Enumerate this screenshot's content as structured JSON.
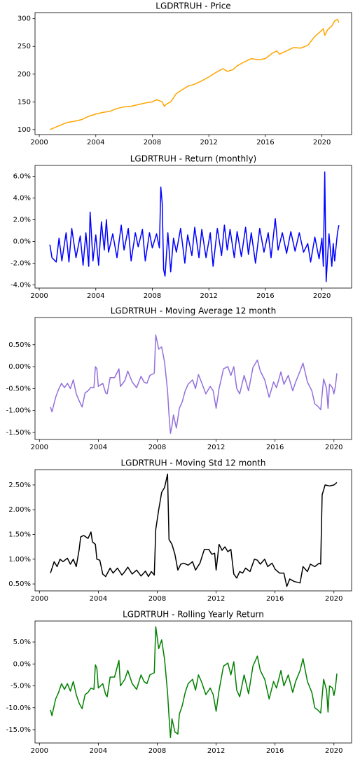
{
  "chart_data": [
    {
      "type": "line",
      "title": "LGDRTRUH - Price",
      "color": "#ffa500",
      "x": [
        2000.75,
        2001.5,
        2002,
        2002.5,
        2003,
        2003.5,
        2004,
        2004.5,
        2005,
        2005.5,
        2006,
        2006.5,
        2007,
        2007.5,
        2008,
        2008.3,
        2008.7,
        2008.85,
        2009,
        2009.3,
        2009.7,
        2010,
        2010.5,
        2011,
        2011.5,
        2012,
        2012.5,
        2013,
        2013.3,
        2013.7,
        2014,
        2014.5,
        2015,
        2015.5,
        2016,
        2016.5,
        2016.8,
        2017,
        2017.5,
        2018,
        2018.5,
        2019,
        2019.5,
        2019.9,
        2020.1,
        2020.2,
        2020.4,
        2020.7,
        2020.9,
        2021.1,
        2021.2
      ],
      "values": [
        100,
        108,
        113,
        115,
        118,
        124,
        128,
        131,
        133,
        138,
        141,
        142,
        145,
        148,
        150,
        154,
        150,
        142,
        146,
        150,
        165,
        170,
        178,
        182,
        188,
        195,
        203,
        210,
        205,
        208,
        215,
        222,
        228,
        226,
        228,
        238,
        242,
        236,
        242,
        248,
        247,
        252,
        268,
        277,
        282,
        270,
        280,
        287,
        296,
        299,
        293
      ],
      "xlim": [
        1999.7,
        2022.1
      ],
      "xticks": [
        2000,
        2004,
        2008,
        2012,
        2016,
        2020
      ],
      "ylim": [
        91,
        311
      ],
      "yticks": [
        100,
        150,
        200,
        250,
        300
      ]
    },
    {
      "type": "line",
      "title": "LGDRTRUH - Return (monthly)",
      "color": "#0000ff",
      "x": [
        2000.75,
        2000.9,
        2001.2,
        2001.4,
        2001.6,
        2001.9,
        2002.1,
        2002.3,
        2002.6,
        2002.9,
        2003.1,
        2003.3,
        2003.5,
        2003.6,
        2003.8,
        2004.0,
        2004.2,
        2004.4,
        2004.6,
        2004.75,
        2004.9,
        2005.2,
        2005.5,
        2005.8,
        2006.0,
        2006.3,
        2006.5,
        2006.8,
        2007.0,
        2007.3,
        2007.5,
        2007.8,
        2008.0,
        2008.3,
        2008.5,
        2008.6,
        2008.7,
        2008.8,
        2008.9,
        2009.1,
        2009.3,
        2009.5,
        2009.7,
        2010.0,
        2010.3,
        2010.5,
        2010.8,
        2011.0,
        2011.3,
        2011.5,
        2011.8,
        2012.1,
        2012.3,
        2012.6,
        2012.9,
        2013.1,
        2013.3,
        2013.5,
        2013.8,
        2014.0,
        2014.3,
        2014.6,
        2014.8,
        2015.0,
        2015.3,
        2015.6,
        2015.9,
        2016.2,
        2016.4,
        2016.7,
        2016.9,
        2017.2,
        2017.5,
        2017.8,
        2018.1,
        2018.4,
        2018.7,
        2019.0,
        2019.2,
        2019.5,
        2019.8,
        2020.0,
        2020.1,
        2020.2,
        2020.3,
        2020.5,
        2020.7,
        2020.8,
        2020.9,
        2021.1,
        2021.2
      ],
      "values": [
        -0.3,
        -1.5,
        -1.9,
        0.3,
        -1.8,
        0.8,
        -1.9,
        1.2,
        -1.5,
        0.5,
        -2.2,
        0.8,
        -2.3,
        2.7,
        -1.8,
        0.6,
        -2.2,
        1.8,
        -0.8,
        2.0,
        -1.0,
        0.7,
        -1.5,
        1.5,
        -0.8,
        1.2,
        -1.8,
        0.8,
        -0.5,
        1.1,
        -1.8,
        0.8,
        -0.6,
        0.7,
        -0.6,
        5.0,
        3.5,
        -2.6,
        -3.2,
        0.8,
        -2.8,
        0.3,
        -1.0,
        1.2,
        -2.0,
        0.6,
        -1.3,
        1.3,
        -1.5,
        1.1,
        -1.5,
        0.8,
        -2.3,
        1.2,
        -1.3,
        1.5,
        -0.8,
        1.1,
        -1.5,
        0.9,
        -1.4,
        1.3,
        -1.2,
        0.8,
        -2.0,
        1.2,
        -1.0,
        0.8,
        -1.5,
        2.1,
        -0.8,
        0.8,
        -1.1,
        0.9,
        -0.9,
        0.8,
        -1.0,
        -0.2,
        -1.9,
        0.4,
        -1.6,
        0.3,
        -2.3,
        6.4,
        -3.7,
        0.7,
        -2.3,
        -0.2,
        -1.8,
        0.8,
        1.5
      ],
      "xlim": [
        1999.7,
        2022.1
      ],
      "xticks": [
        2000,
        2004,
        2008,
        2012,
        2016,
        2020
      ],
      "ylim": [
        -4.3,
        7.0
      ],
      "yticks": [
        {
          "value": -4,
          "label": "-4.0%"
        },
        {
          "value": -2,
          "label": "-2.0%"
        },
        {
          "value": 0,
          "label": "0.0%"
        },
        {
          "value": 2,
          "label": "2.0%"
        },
        {
          "value": 4,
          "label": "4.0%"
        },
        {
          "value": 6,
          "label": "6.0%"
        }
      ]
    },
    {
      "type": "line",
      "title": "LGDRTRUH - Moving Average 12 month",
      "color": "#9370db",
      "x": [
        2000.75,
        2000.85,
        2001.1,
        2001.3,
        2001.5,
        2001.7,
        2001.9,
        2002.1,
        2002.3,
        2002.5,
        2002.7,
        2002.9,
        2003.1,
        2003.3,
        2003.5,
        2003.7,
        2003.8,
        2003.9,
        2004.0,
        2004.3,
        2004.5,
        2004.6,
        2004.8,
        2005.1,
        2005.4,
        2005.5,
        2005.8,
        2006.0,
        2006.3,
        2006.6,
        2006.9,
        2007.1,
        2007.3,
        2007.5,
        2007.8,
        2007.9,
        2008.1,
        2008.3,
        2008.5,
        2008.7,
        2008.8,
        2008.9,
        2009.0,
        2009.1,
        2009.3,
        2009.5,
        2009.7,
        2009.9,
        2010.1,
        2010.4,
        2010.6,
        2010.8,
        2011.0,
        2011.3,
        2011.6,
        2011.8,
        2012.0,
        2012.2,
        2012.5,
        2012.8,
        2013.0,
        2013.2,
        2013.4,
        2013.6,
        2013.9,
        2014.2,
        2014.5,
        2014.8,
        2015.0,
        2015.3,
        2015.6,
        2015.9,
        2016.1,
        2016.4,
        2016.6,
        2016.9,
        2017.2,
        2017.4,
        2017.7,
        2017.9,
        2018.2,
        2018.5,
        2018.7,
        2018.9,
        2019.1,
        2019.3,
        2019.5,
        2019.6,
        2019.7,
        2019.9,
        2020.0,
        2020.1,
        2020.2
      ],
      "values": [
        -0.92,
        -1.03,
        -0.7,
        -0.52,
        -0.38,
        -0.48,
        -0.38,
        -0.5,
        -0.3,
        -0.62,
        -0.78,
        -0.92,
        -0.6,
        -0.55,
        -0.47,
        -0.48,
        0.0,
        -0.05,
        -0.45,
        -0.38,
        -0.6,
        -0.62,
        -0.25,
        -0.25,
        -0.05,
        -0.45,
        -0.32,
        -0.1,
        -0.35,
        -0.48,
        -0.22,
        -0.35,
        -0.38,
        -0.2,
        -0.15,
        0.72,
        0.4,
        0.45,
        0.1,
        -0.55,
        -1.1,
        -1.52,
        -1.35,
        -1.1,
        -1.4,
        -0.95,
        -0.8,
        -0.55,
        -0.4,
        -0.3,
        -0.5,
        -0.18,
        -0.35,
        -0.62,
        -0.45,
        -0.55,
        -0.95,
        -0.5,
        -0.05,
        0.0,
        -0.2,
        0.0,
        -0.5,
        -0.62,
        -0.2,
        -0.55,
        -0.02,
        0.15,
        -0.1,
        -0.3,
        -0.7,
        -0.35,
        -0.48,
        -0.12,
        -0.4,
        -0.2,
        -0.55,
        -0.35,
        -0.1,
        0.08,
        -0.35,
        -0.55,
        -0.85,
        -0.9,
        -0.98,
        -0.28,
        -0.5,
        -0.95,
        -0.4,
        -0.48,
        -0.62,
        -0.45,
        -0.15
      ],
      "xlim": [
        1999.7,
        2021.2
      ],
      "xticks": [
        2000,
        2004,
        2008,
        2012,
        2016,
        2020
      ],
      "ylim": [
        -1.66,
        1.12
      ],
      "yticks": [
        {
          "value": -1.5,
          "label": "-1.50%"
        },
        {
          "value": -1,
          "label": "-1.00%"
        },
        {
          "value": -0.5,
          "label": "-0.50%"
        },
        {
          "value": 0,
          "label": "0.00%"
        },
        {
          "value": 0.5,
          "label": "0.50%"
        }
      ]
    },
    {
      "type": "line",
      "title": "LGDRTRUH - Moving Std 12 month",
      "color": "#000000",
      "x": [
        2000.75,
        2001.0,
        2001.2,
        2001.4,
        2001.6,
        2001.9,
        2002.1,
        2002.3,
        2002.5,
        2002.7,
        2002.8,
        2003.0,
        2003.3,
        2003.5,
        2003.6,
        2003.8,
        2003.9,
        2004.1,
        2004.3,
        2004.5,
        2004.8,
        2005.0,
        2005.3,
        2005.6,
        2005.8,
        2006.0,
        2006.3,
        2006.6,
        2006.9,
        2007.2,
        2007.4,
        2007.6,
        2007.8,
        2007.9,
        2008.1,
        2008.3,
        2008.5,
        2008.7,
        2008.8,
        2009.0,
        2009.2,
        2009.4,
        2009.6,
        2009.8,
        2010.1,
        2010.4,
        2010.6,
        2010.9,
        2011.2,
        2011.5,
        2011.7,
        2011.9,
        2012.0,
        2012.2,
        2012.4,
        2012.6,
        2012.8,
        2013.0,
        2013.2,
        2013.4,
        2013.6,
        2013.8,
        2014.0,
        2014.3,
        2014.6,
        2014.8,
        2015.0,
        2015.3,
        2015.5,
        2015.8,
        2016.0,
        2016.3,
        2016.6,
        2016.8,
        2017.0,
        2017.3,
        2017.7,
        2017.9,
        2018.2,
        2018.4,
        2018.7,
        2019.0,
        2019.1,
        2019.2,
        2019.4,
        2019.7,
        2020.0,
        2020.2
      ],
      "values": [
        0.72,
        0.95,
        0.85,
        1.0,
        0.95,
        1.02,
        0.9,
        1.0,
        0.85,
        1.2,
        1.45,
        1.48,
        1.42,
        1.55,
        1.35,
        1.3,
        1.0,
        0.98,
        0.7,
        0.65,
        0.82,
        0.72,
        0.82,
        0.68,
        0.75,
        0.84,
        0.7,
        0.78,
        0.66,
        0.76,
        0.65,
        0.75,
        0.68,
        1.6,
        2.0,
        2.35,
        2.45,
        2.72,
        1.4,
        1.3,
        1.1,
        0.78,
        0.9,
        0.92,
        0.88,
        0.95,
        0.78,
        0.92,
        1.2,
        1.2,
        1.1,
        1.12,
        0.78,
        1.3,
        1.18,
        1.25,
        1.15,
        1.2,
        0.7,
        0.62,
        0.75,
        0.72,
        0.82,
        0.75,
        1.0,
        0.98,
        0.9,
        1.0,
        0.85,
        0.92,
        0.8,
        0.72,
        0.72,
        0.45,
        0.6,
        0.55,
        0.52,
        0.85,
        0.75,
        0.9,
        0.85,
        0.92,
        0.9,
        2.3,
        2.5,
        2.48,
        2.5,
        2.55
      ],
      "xlim": [
        1999.7,
        2021.2
      ],
      "xticks": [
        2000,
        2004,
        2008,
        2012,
        2016,
        2020
      ],
      "ylim": [
        0.36,
        2.81
      ],
      "yticks": [
        {
          "value": 0.5,
          "label": "0.50%"
        },
        {
          "value": 1,
          "label": "1.00%"
        },
        {
          "value": 1.5,
          "label": "1.50%"
        },
        {
          "value": 2,
          "label": "2.00%"
        },
        {
          "value": 2.5,
          "label": "2.50%"
        }
      ]
    },
    {
      "type": "line",
      "title": "LGDRTRUH - Rolling Yearly Return",
      "color": "#008000",
      "x": [
        2000.75,
        2000.85,
        2001.1,
        2001.3,
        2001.5,
        2001.7,
        2001.9,
        2002.1,
        2002.3,
        2002.5,
        2002.7,
        2002.9,
        2003.1,
        2003.3,
        2003.5,
        2003.7,
        2003.8,
        2003.9,
        2004.0,
        2004.3,
        2004.5,
        2004.6,
        2004.8,
        2005.1,
        2005.4,
        2005.5,
        2005.8,
        2006.0,
        2006.3,
        2006.6,
        2006.9,
        2007.1,
        2007.3,
        2007.5,
        2007.8,
        2007.9,
        2008.1,
        2008.3,
        2008.5,
        2008.7,
        2008.8,
        2008.9,
        2009.0,
        2009.2,
        2009.4,
        2009.5,
        2009.7,
        2009.9,
        2010.1,
        2010.4,
        2010.6,
        2010.8,
        2011.0,
        2011.3,
        2011.6,
        2011.8,
        2012.0,
        2012.2,
        2012.5,
        2012.8,
        2013.0,
        2013.2,
        2013.4,
        2013.6,
        2013.9,
        2014.2,
        2014.5,
        2014.8,
        2015.0,
        2015.3,
        2015.6,
        2015.9,
        2016.1,
        2016.4,
        2016.6,
        2016.9,
        2017.2,
        2017.4,
        2017.7,
        2017.9,
        2018.2,
        2018.5,
        2018.7,
        2018.9,
        2019.1,
        2019.3,
        2019.5,
        2019.6,
        2019.7,
        2019.9,
        2020.0,
        2020.1,
        2020.2
      ],
      "values": [
        -10.5,
        -11.8,
        -8,
        -6.5,
        -4.5,
        -5.8,
        -4.5,
        -6.2,
        -4.0,
        -7,
        -9,
        -10.2,
        -7,
        -6.5,
        -5.5,
        -5.8,
        -0.2,
        -1,
        -5.5,
        -4.5,
        -7,
        -7.5,
        -3,
        -3,
        0.8,
        -5,
        -3.5,
        -1.5,
        -4.5,
        -5.8,
        -2.5,
        -4,
        -4.5,
        -2.5,
        -2,
        8.5,
        3.5,
        5.5,
        1,
        -6.5,
        -12,
        -16.8,
        -12.5,
        -15.5,
        -16,
        -11.5,
        -9.5,
        -6.5,
        -4.5,
        -3.5,
        -6,
        -2.5,
        -4,
        -7,
        -5.5,
        -7,
        -10.8,
        -6,
        -0.5,
        0.2,
        -2.5,
        0.5,
        -6,
        -7.5,
        -2.5,
        -6.8,
        -0.5,
        1.8,
        -1.5,
        -3.5,
        -8,
        -4,
        -5.5,
        -1.5,
        -5,
        -2.5,
        -6.5,
        -4,
        -1.5,
        1.2,
        -4,
        -6.5,
        -10,
        -10.5,
        -11.2,
        -3.5,
        -6,
        -11,
        -5,
        -5.5,
        -7.2,
        -5.5,
        -2.2
      ],
      "xlim": [
        1999.7,
        2021.2
      ],
      "xticks": [
        2000,
        2004,
        2008,
        2012,
        2016,
        2020
      ],
      "ylim": [
        -18.04,
        9.8
      ],
      "yticks": [
        {
          "value": -15,
          "label": "-15.0%"
        },
        {
          "value": -10,
          "label": "-10.0%"
        },
        {
          "value": -5,
          "label": "-5.0%"
        },
        {
          "value": 0,
          "label": "0.0%"
        },
        {
          "value": 5,
          "label": "5.0%"
        }
      ]
    }
  ]
}
